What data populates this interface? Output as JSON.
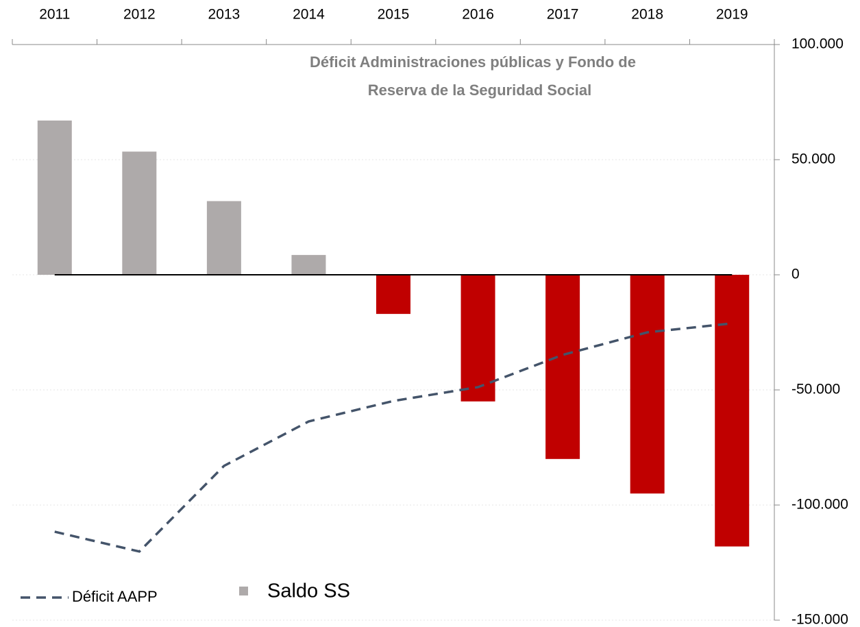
{
  "chart_data": {
    "type": "bar",
    "title_lines": [
      "Déficit Administraciones públicas y Fondo de",
      "Reserva de la Seguridad Social"
    ],
    "categories": [
      "2011",
      "2012",
      "2013",
      "2014",
      "2015",
      "2016",
      "2017",
      "2018",
      "2019"
    ],
    "series": [
      {
        "name": "Saldo SS",
        "type": "bar",
        "color": "#aeaaaa",
        "negative_color": "#c00000",
        "values": [
          67000,
          53500,
          32000,
          8600,
          -17000,
          -55000,
          -80000,
          -95000,
          -118000
        ]
      },
      {
        "name": "Déficit AAPP",
        "type": "line",
        "color": "#44546a",
        "dashed": true,
        "values": [
          -111600,
          -120200,
          -83000,
          -63700,
          -54800,
          -48800,
          -34800,
          -25000,
          -21100
        ]
      }
    ],
    "ylim": [
      -150000,
      100000
    ],
    "yticks": [
      {
        "value": 100000,
        "label": "100.000"
      },
      {
        "value": 50000,
        "label": "50.000"
      },
      0,
      {
        "value": -50000,
        "label": "-50.000"
      },
      {
        "value": -100000,
        "label": "-100.000"
      },
      {
        "value": -150000,
        "label": "-150.000"
      }
    ],
    "grid": true,
    "x_axis_position": "top",
    "y_axis_position": "right",
    "legend": "bottom-left"
  }
}
